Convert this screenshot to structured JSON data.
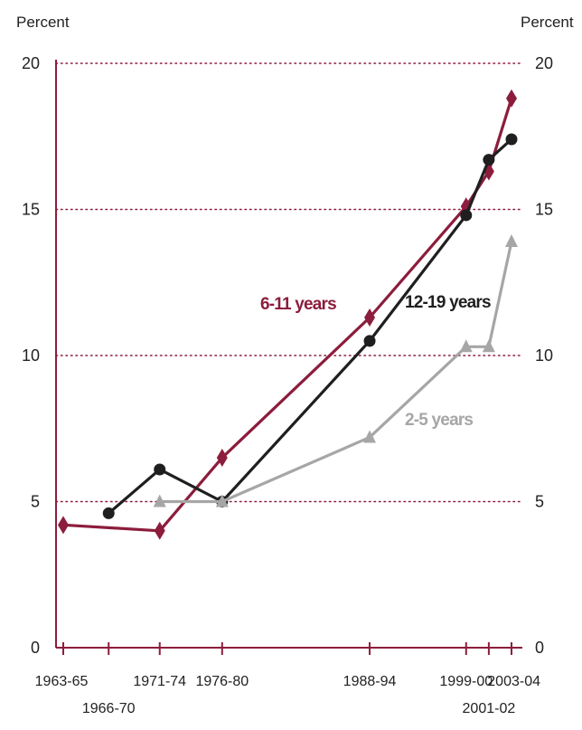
{
  "chart_data": {
    "type": "line",
    "title": "",
    "ylabel_left": "Percent",
    "ylabel_right": "Percent",
    "ylim": [
      0,
      20
    ],
    "yticks": [
      0,
      5,
      10,
      15,
      20
    ],
    "grid": "dotted horizontal",
    "x_ticks": [
      {
        "label": "1963-65",
        "x": 1964
      },
      {
        "label": "1966-70",
        "x": 1968
      },
      {
        "label": "1971-74",
        "x": 1972.5
      },
      {
        "label": "1976-80",
        "x": 1978
      },
      {
        "label": "1988-94",
        "x": 1991
      },
      {
        "label": "1999-00",
        "x": 1999.5
      },
      {
        "label": "2001-02",
        "x": 2001.5
      },
      {
        "label": "2003-04",
        "x": 2003.5
      }
    ],
    "series": [
      {
        "name": "6-11 years",
        "color": "#8c1d3c",
        "marker": "diamond",
        "points": [
          [
            1964,
            4.2
          ],
          [
            1972.5,
            4.0
          ],
          [
            1978,
            6.5
          ],
          [
            1991,
            11.3
          ],
          [
            1999.5,
            15.1
          ],
          [
            2001.5,
            16.3
          ],
          [
            2003.5,
            18.8
          ]
        ]
      },
      {
        "name": "12-19 years",
        "color": "#1f1f1f",
        "marker": "circle",
        "points": [
          [
            1968,
            4.6
          ],
          [
            1972.5,
            6.1
          ],
          [
            1978,
            5.0
          ],
          [
            1991,
            10.5
          ],
          [
            1999.5,
            14.8
          ],
          [
            2001.5,
            16.7
          ],
          [
            2003.5,
            17.4
          ]
        ]
      },
      {
        "name": "2-5 years",
        "color": "#a6a6a6",
        "marker": "triangle",
        "points": [
          [
            1972.5,
            5.0
          ],
          [
            1978,
            5.0
          ],
          [
            1991,
            7.2
          ],
          [
            1999.5,
            10.3
          ],
          [
            2001.5,
            10.3
          ],
          [
            2003.5,
            13.9
          ]
        ]
      }
    ]
  }
}
